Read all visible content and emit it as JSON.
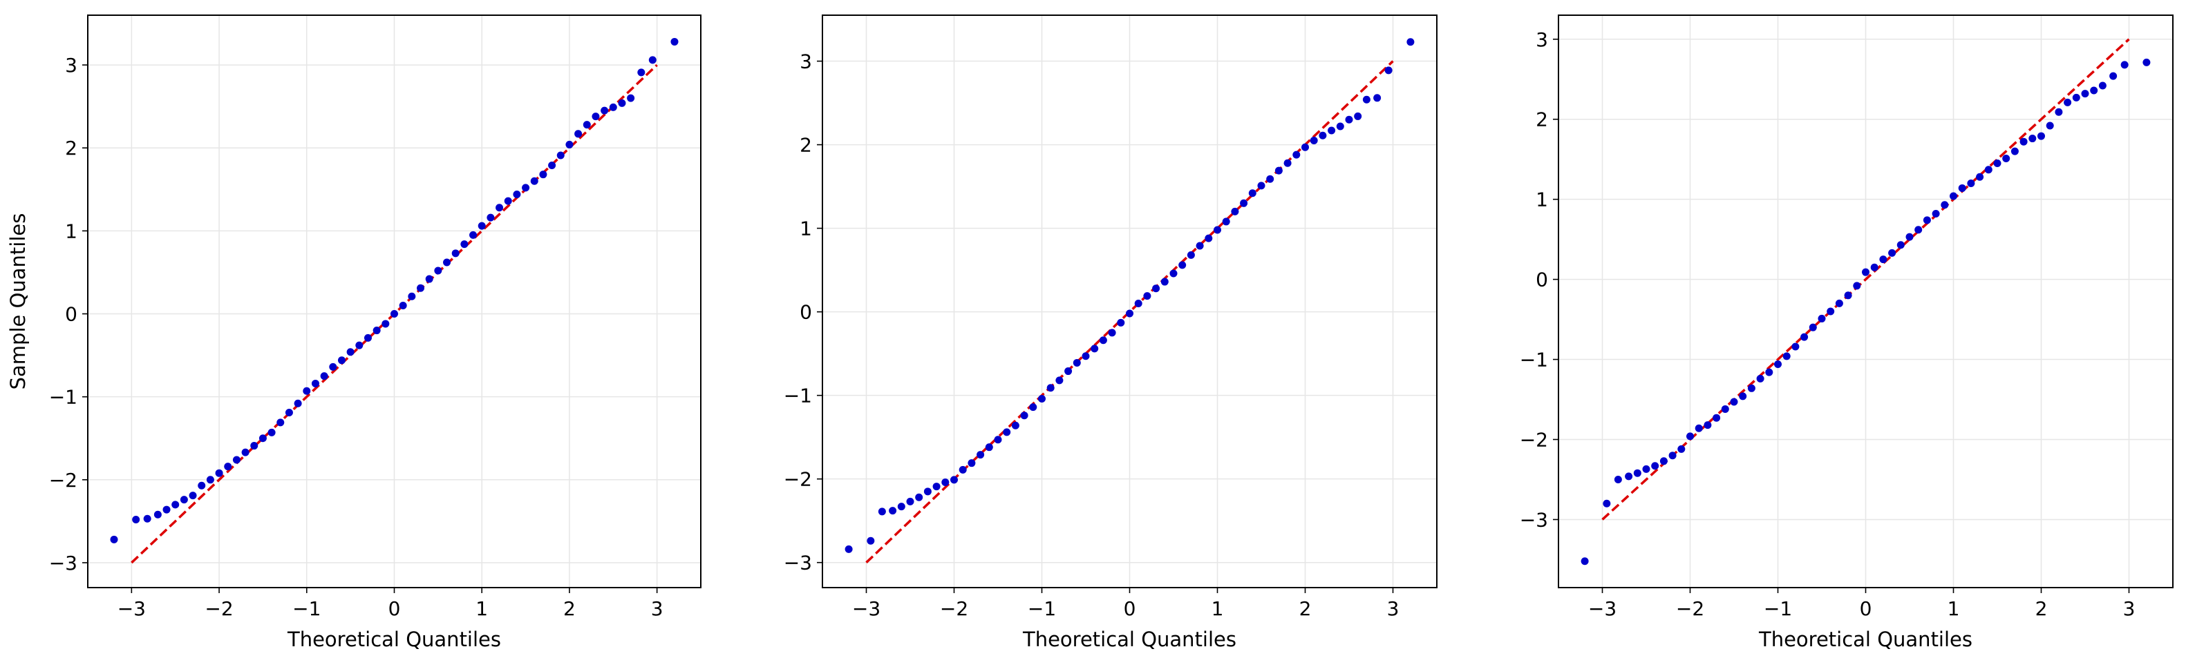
{
  "figure": {
    "background": "#ffffff",
    "point_color": "#0000cc",
    "line_color": "#dd0000",
    "grid_color": "#e6e6e6"
  },
  "chart_data": [
    {
      "type": "scatter",
      "title": "",
      "xlabel": "Theoretical Quantiles",
      "ylabel": "Sample Quantiles",
      "xlim": [
        -3.5,
        3.5
      ],
      "ylim": [
        -3.3,
        3.6
      ],
      "xticks": [
        -3,
        -2,
        -1,
        0,
        1,
        2,
        3
      ],
      "xtick_labels": [
        "−3",
        "−2",
        "−1",
        "0",
        "1",
        "2",
        "3"
      ],
      "yticks": [
        -3,
        -2,
        -1,
        0,
        1,
        2,
        3
      ],
      "ytick_labels": [
        "−3",
        "−2",
        "−1",
        "0",
        "1",
        "2",
        "3"
      ],
      "grid": true,
      "reference_line": {
        "x": [
          -3,
          3
        ],
        "y": [
          -3,
          3
        ],
        "style": "dashed"
      },
      "series": [
        {
          "x": [
            -3.2,
            -2.95,
            -2.82,
            -2.7,
            -2.6,
            -2.5,
            -2.4,
            -2.3,
            -2.2,
            -2.1,
            -2.0,
            -1.9,
            -1.8,
            -1.7,
            -1.6,
            -1.5,
            -1.4,
            -1.3,
            -1.2,
            -1.1,
            -1.0,
            -0.9,
            -0.8,
            -0.7,
            -0.6,
            -0.5,
            -0.4,
            -0.3,
            -0.2,
            -0.1,
            0.0,
            0.1,
            0.2,
            0.3,
            0.4,
            0.5,
            0.6,
            0.7,
            0.8,
            0.9,
            1.0,
            1.1,
            1.2,
            1.3,
            1.4,
            1.5,
            1.6,
            1.7,
            1.8,
            1.9,
            2.0,
            2.1,
            2.2,
            2.3,
            2.4,
            2.5,
            2.6,
            2.7,
            2.82,
            2.95,
            3.2
          ],
          "y": [
            -2.72,
            -2.48,
            -2.47,
            -2.42,
            -2.36,
            -2.3,
            -2.24,
            -2.19,
            -2.07,
            -2.0,
            -1.92,
            -1.84,
            -1.76,
            -1.67,
            -1.59,
            -1.5,
            -1.43,
            -1.31,
            -1.19,
            -1.08,
            -0.93,
            -0.84,
            -0.75,
            -0.64,
            -0.56,
            -0.46,
            -0.38,
            -0.29,
            -0.2,
            -0.12,
            0.0,
            0.1,
            0.21,
            0.31,
            0.42,
            0.52,
            0.62,
            0.73,
            0.84,
            0.95,
            1.06,
            1.16,
            1.28,
            1.36,
            1.44,
            1.52,
            1.6,
            1.68,
            1.79,
            1.91,
            2.04,
            2.17,
            2.28,
            2.38,
            2.45,
            2.49,
            2.54,
            2.6,
            2.91,
            3.06,
            3.28
          ]
        }
      ]
    },
    {
      "type": "scatter",
      "title": "",
      "xlabel": "Theoretical Quantiles",
      "ylabel": "",
      "xlim": [
        -3.5,
        3.5
      ],
      "ylim": [
        -3.3,
        3.55
      ],
      "xticks": [
        -3,
        -2,
        -1,
        0,
        1,
        2,
        3
      ],
      "xtick_labels": [
        "−3",
        "−2",
        "−1",
        "0",
        "1",
        "2",
        "3"
      ],
      "yticks": [
        -3,
        -2,
        -1,
        0,
        1,
        2,
        3
      ],
      "ytick_labels": [
        "−3",
        "−2",
        "−1",
        "0",
        "1",
        "2",
        "3"
      ],
      "grid": true,
      "reference_line": {
        "x": [
          -3,
          3
        ],
        "y": [
          -3,
          3
        ],
        "style": "dashed"
      },
      "series": [
        {
          "x": [
            -3.2,
            -2.95,
            -2.82,
            -2.7,
            -2.6,
            -2.5,
            -2.4,
            -2.3,
            -2.2,
            -2.1,
            -2.0,
            -1.9,
            -1.8,
            -1.7,
            -1.6,
            -1.5,
            -1.4,
            -1.3,
            -1.2,
            -1.1,
            -1.0,
            -0.9,
            -0.8,
            -0.7,
            -0.6,
            -0.5,
            -0.4,
            -0.3,
            -0.2,
            -0.1,
            0.0,
            0.1,
            0.2,
            0.3,
            0.4,
            0.5,
            0.6,
            0.7,
            0.8,
            0.9,
            1.0,
            1.1,
            1.2,
            1.3,
            1.4,
            1.5,
            1.6,
            1.7,
            1.8,
            1.9,
            2.0,
            2.1,
            2.2,
            2.3,
            2.4,
            2.5,
            2.6,
            2.7,
            2.82,
            2.95,
            3.2
          ],
          "y": [
            -2.84,
            -2.74,
            -2.39,
            -2.38,
            -2.33,
            -2.27,
            -2.22,
            -2.15,
            -2.09,
            -2.04,
            -2.01,
            -1.89,
            -1.81,
            -1.71,
            -1.62,
            -1.53,
            -1.44,
            -1.36,
            -1.24,
            -1.14,
            -1.04,
            -0.91,
            -0.82,
            -0.71,
            -0.61,
            -0.53,
            -0.44,
            -0.34,
            -0.25,
            -0.13,
            -0.02,
            0.1,
            0.19,
            0.28,
            0.36,
            0.46,
            0.56,
            0.68,
            0.79,
            0.88,
            0.98,
            1.08,
            1.2,
            1.3,
            1.42,
            1.51,
            1.59,
            1.69,
            1.78,
            1.88,
            1.97,
            2.05,
            2.11,
            2.17,
            2.22,
            2.3,
            2.34,
            2.54,
            2.56,
            2.89,
            3.23
          ]
        }
      ]
    },
    {
      "type": "scatter",
      "title": "",
      "xlabel": "Theoretical Quantiles",
      "ylabel": "",
      "xlim": [
        -3.5,
        3.5
      ],
      "ylim": [
        -3.85,
        3.3
      ],
      "xticks": [
        -3,
        -2,
        -1,
        0,
        1,
        2,
        3
      ],
      "xtick_labels": [
        "−3",
        "−2",
        "−1",
        "0",
        "1",
        "2",
        "3"
      ],
      "yticks": [
        -3,
        -2,
        -1,
        0,
        1,
        2,
        3
      ],
      "ytick_labels": [
        "−3",
        "−2",
        "−1",
        "0",
        "1",
        "2",
        "3"
      ],
      "grid": true,
      "reference_line": {
        "x": [
          -3,
          3
        ],
        "y": [
          -3,
          3
        ],
        "style": "dashed"
      },
      "series": [
        {
          "x": [
            -3.2,
            -2.95,
            -2.82,
            -2.7,
            -2.6,
            -2.5,
            -2.4,
            -2.3,
            -2.2,
            -2.1,
            -2.0,
            -1.9,
            -1.8,
            -1.7,
            -1.6,
            -1.5,
            -1.4,
            -1.3,
            -1.2,
            -1.1,
            -1.0,
            -0.9,
            -0.8,
            -0.7,
            -0.6,
            -0.5,
            -0.4,
            -0.3,
            -0.2,
            -0.1,
            0.0,
            0.1,
            0.2,
            0.3,
            0.4,
            0.5,
            0.6,
            0.7,
            0.8,
            0.9,
            1.0,
            1.1,
            1.2,
            1.3,
            1.4,
            1.5,
            1.6,
            1.7,
            1.8,
            1.9,
            2.0,
            2.1,
            2.2,
            2.3,
            2.4,
            2.5,
            2.6,
            2.7,
            2.82,
            2.95,
            3.2
          ],
          "y": [
            -3.52,
            -2.8,
            -2.5,
            -2.46,
            -2.42,
            -2.37,
            -2.33,
            -2.27,
            -2.2,
            -2.12,
            -1.96,
            -1.86,
            -1.82,
            -1.73,
            -1.62,
            -1.53,
            -1.46,
            -1.36,
            -1.24,
            -1.16,
            -1.06,
            -0.96,
            -0.84,
            -0.72,
            -0.6,
            -0.49,
            -0.4,
            -0.3,
            -0.2,
            -0.08,
            0.09,
            0.15,
            0.25,
            0.33,
            0.43,
            0.53,
            0.62,
            0.74,
            0.82,
            0.93,
            1.04,
            1.14,
            1.2,
            1.28,
            1.37,
            1.45,
            1.51,
            1.6,
            1.72,
            1.76,
            1.79,
            1.92,
            2.09,
            2.21,
            2.27,
            2.32,
            2.36,
            2.42,
            2.54,
            2.68,
            2.71
          ]
        }
      ]
    }
  ]
}
